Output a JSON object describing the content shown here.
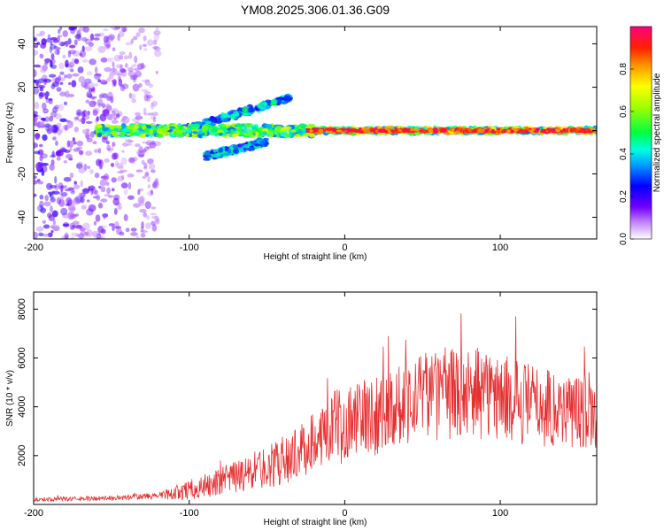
{
  "title": "YM08.2025.306.01.36.G09",
  "chart_data": [
    {
      "type": "heatmap",
      "xlabel": "Height of straight line (km)",
      "ylabel": "Frequency (Hz)",
      "xlim": [
        -200,
        162
      ],
      "ylim": [
        -50,
        48
      ],
      "xticks": [
        -200,
        -100,
        0,
        100
      ],
      "yticks": [
        -40,
        -20,
        0,
        20,
        40
      ],
      "colorbar": {
        "label": "Normalized spectral amplitude",
        "range": [
          0,
          1
        ],
        "ticks": [
          "0.0",
          "0.2",
          "0.4",
          "0.6",
          "0.8"
        ]
      },
      "regions": [
        {
          "name": "noise",
          "x": [
            -200,
            -120
          ],
          "y": [
            -50,
            48
          ],
          "amplitude": [
            0.05,
            0.25
          ]
        },
        {
          "name": "upper-branch",
          "x": [
            -105,
            -35
          ],
          "y_start": 0,
          "y_end": 15,
          "amplitude": [
            0.2,
            0.5
          ]
        },
        {
          "name": "lower-branch",
          "x": [
            -90,
            -50
          ],
          "y_start": -12,
          "y_end": -5,
          "amplitude": [
            0.2,
            0.5
          ]
        },
        {
          "name": "main-signal",
          "x": [
            -160,
            162
          ],
          "y": 0,
          "amplitude": [
            0.3,
            0.95
          ]
        },
        {
          "name": "strong-core",
          "x": [
            -25,
            162
          ],
          "y": 0,
          "amplitude": [
            0.8,
            1.0
          ]
        }
      ]
    },
    {
      "type": "line",
      "xlabel": "Height of straight line (km)",
      "ylabel": "SNR (10 * v/v)",
      "xlim": [
        -200,
        162
      ],
      "ylim": [
        0,
        8700
      ],
      "xticks": [
        -200,
        -100,
        0,
        100
      ],
      "yticks": [
        2000,
        4000,
        6000,
        8000
      ],
      "color": "#e53030",
      "envelope_x": [
        -200,
        -150,
        -120,
        -100,
        -80,
        -60,
        -40,
        -25,
        -15,
        0,
        20,
        40,
        60,
        80,
        100,
        120,
        140,
        162
      ],
      "envelope_y": [
        200,
        260,
        350,
        600,
        900,
        1300,
        1800,
        2300,
        3000,
        3400,
        3700,
        4300,
        4500,
        4600,
        4400,
        4100,
        3900,
        3800
      ],
      "noise_amp": [
        80,
        100,
        150,
        400,
        600,
        800,
        1000,
        1100,
        1400,
        1500,
        1700,
        1800,
        1900,
        1900,
        1800,
        1700,
        1600,
        1500
      ]
    }
  ]
}
